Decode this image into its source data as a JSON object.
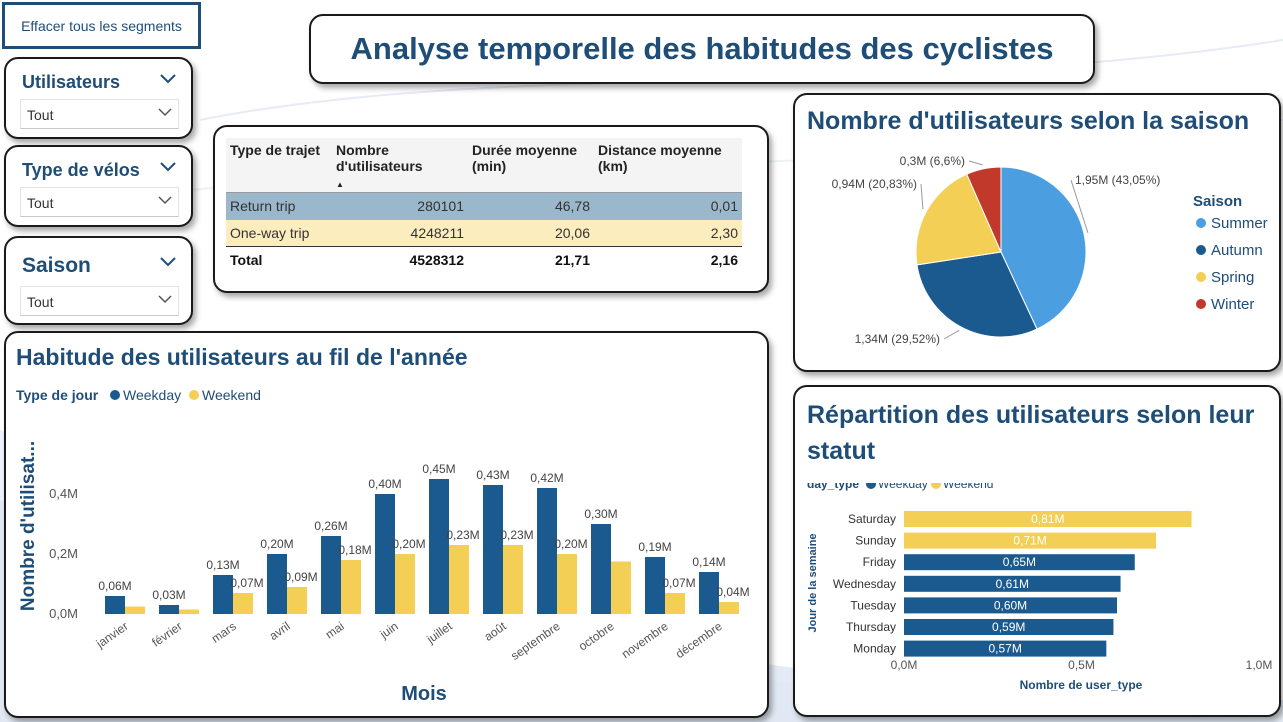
{
  "page": {
    "title": "Analyse temporelle des habitudes des cyclistes",
    "clear_segments": "Effacer tous les segments"
  },
  "slicers": [
    {
      "title": "Utilisateurs",
      "value": "Tout"
    },
    {
      "title": "Type de vélos",
      "value": "Tout"
    },
    {
      "title": "Saison",
      "value": "Tout"
    }
  ],
  "table": {
    "headers": [
      "Type de trajet",
      "Nombre d'utilisateurs",
      "Durée moyenne (min)",
      "Distance moyenne (km)"
    ],
    "sort_column": "Nombre d'utilisateurs",
    "rows": [
      [
        "Return trip",
        "280101",
        "46,78",
        "0,01"
      ],
      [
        "One-way trip",
        "4248211",
        "20,06",
        "2,30"
      ]
    ],
    "total": [
      "Total",
      "4528312",
      "21,71",
      "2,16"
    ]
  },
  "colors": {
    "primary": "#1e4d78",
    "weekday": "#1a5a8f",
    "weekend": "#f4cf56",
    "summer": "#4b9ee0",
    "autumn": "#1a5a8f",
    "spring": "#f4cf56",
    "winter": "#c0392b"
  },
  "chart_data": [
    {
      "type": "bar",
      "title": "Habitude des utilisateurs au fil de l'année",
      "legend_title": "Type de jour",
      "xlabel": "Mois",
      "ylabel": "Nombre d'utilisat...",
      "categories": [
        "janvier",
        "février",
        "mars",
        "avril",
        "mai",
        "juin",
        "juillet",
        "août",
        "septembre",
        "octobre",
        "novembre",
        "décembre"
      ],
      "series": [
        {
          "name": "Weekday",
          "values": [
            0.06,
            0.03,
            0.13,
            0.2,
            0.26,
            0.4,
            0.45,
            0.43,
            0.42,
            0.3,
            0.19,
            0.14
          ],
          "labels": [
            "0,06M",
            "0,03M",
            "0,13M",
            "0,20M",
            "0,26M",
            "0,40M",
            "0,45M",
            "0,43M",
            "0,42M",
            "0,30M",
            "0,19M",
            "0,14M"
          ]
        },
        {
          "name": "Weekend",
          "values": [
            0.025,
            0.015,
            0.07,
            0.09,
            0.18,
            0.2,
            0.23,
            0.23,
            0.2,
            0.175,
            0.07,
            0.04
          ],
          "labels": [
            "",
            "",
            "0,07M",
            "0,09M",
            "0,18M",
            "0,20M",
            "0,23M",
            "0,23M",
            "0,20M",
            "",
            "0,07M",
            "0,04M"
          ]
        }
      ],
      "yticks": [
        "0,0M",
        "0,2M",
        "0,4M"
      ],
      "ylim": [
        0,
        0.5
      ],
      "legend": "top-left"
    },
    {
      "type": "pie",
      "title": "Nombre d'utilisateurs selon la saison",
      "legend_title": "Saison",
      "slices": [
        {
          "name": "Summer",
          "value": 43.05,
          "label": "1,95M (43,05%)"
        },
        {
          "name": "Autumn",
          "value": 29.52,
          "label": "1,34M (29,52%)"
        },
        {
          "name": "Spring",
          "value": 20.83,
          "label": "0,94M (20,83%)"
        },
        {
          "name": "Winter",
          "value": 6.6,
          "label": "0,3M (6,6%)"
        }
      ],
      "legend": "right"
    },
    {
      "type": "bar",
      "orientation": "horizontal",
      "title": "Répartition des utilisateurs selon leur statut",
      "legend_title": "day_type",
      "xlabel": "Nombre de user_type",
      "ylabel": "Jour de la semaine",
      "categories": [
        "Saturday",
        "Sunday",
        "Friday",
        "Wednesday",
        "Tuesday",
        "Thursday",
        "Monday"
      ],
      "values": [
        0.81,
        0.71,
        0.65,
        0.61,
        0.6,
        0.59,
        0.57
      ],
      "labels": [
        "0,81M",
        "0,71M",
        "0,65M",
        "0,61M",
        "0,60M",
        "0,59M",
        "0,57M"
      ],
      "day_type": [
        "Weekend",
        "Weekend",
        "Weekday",
        "Weekday",
        "Weekday",
        "Weekday",
        "Weekday"
      ],
      "series_names": [
        "Weekday",
        "Weekend"
      ],
      "xticks": [
        "0,0M",
        "0,5M",
        "1,0M"
      ],
      "xlim": [
        0,
        1.0
      ],
      "legend": "top-left"
    }
  ]
}
